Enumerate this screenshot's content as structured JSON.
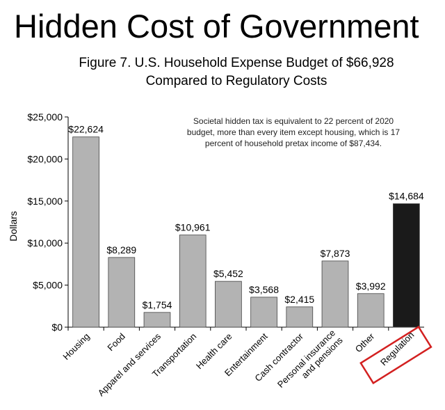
{
  "header": {
    "headline": "Hidden Cost of Government",
    "figure_title_line1": "Figure 7. U.S. Household Expense Budget of $66,928",
    "figure_title_line2": "Compared to Regulatory Costs"
  },
  "annotation": {
    "note": "Societal hidden tax is equivalent to 22 percent of 2020 budget, more than every item except housing, which is 17 percent of household pretax income of $87,434."
  },
  "colors": {
    "bar": "#b3b3b3",
    "highlight_bar": "#1a1a1a",
    "highlight_box": "#d32020"
  },
  "chart_data": {
    "type": "bar",
    "title": "Figure 7. U.S. Household Expense Budget of $66,928 Compared to Regulatory Costs",
    "ylabel": "Dollars",
    "xlabel": "",
    "ylim": [
      0,
      25000
    ],
    "y_ticks": [
      0,
      5000,
      10000,
      15000,
      20000,
      25000
    ],
    "y_tick_labels": [
      "$0",
      "$5,000",
      "$10,000",
      "$15,000",
      "$20,000",
      "$25,000"
    ],
    "grid": false,
    "categories": [
      "Housing",
      "Food",
      "Apparel and services",
      "Transportation",
      "Health care",
      "Entertainment",
      "Cash contractor",
      "Personal insurance\nand pensions",
      "Other",
      "Regulation"
    ],
    "values": [
      22624,
      8289,
      1754,
      10961,
      5452,
      3568,
      2415,
      7873,
      3992,
      14684
    ],
    "value_labels": [
      "$22,624",
      "$8,289",
      "$1,754",
      "$10,961",
      "$5,452",
      "$3,568",
      "$2,415",
      "$7,873",
      "$3,992",
      "$14,684"
    ],
    "highlighted_category": "Regulation"
  }
}
